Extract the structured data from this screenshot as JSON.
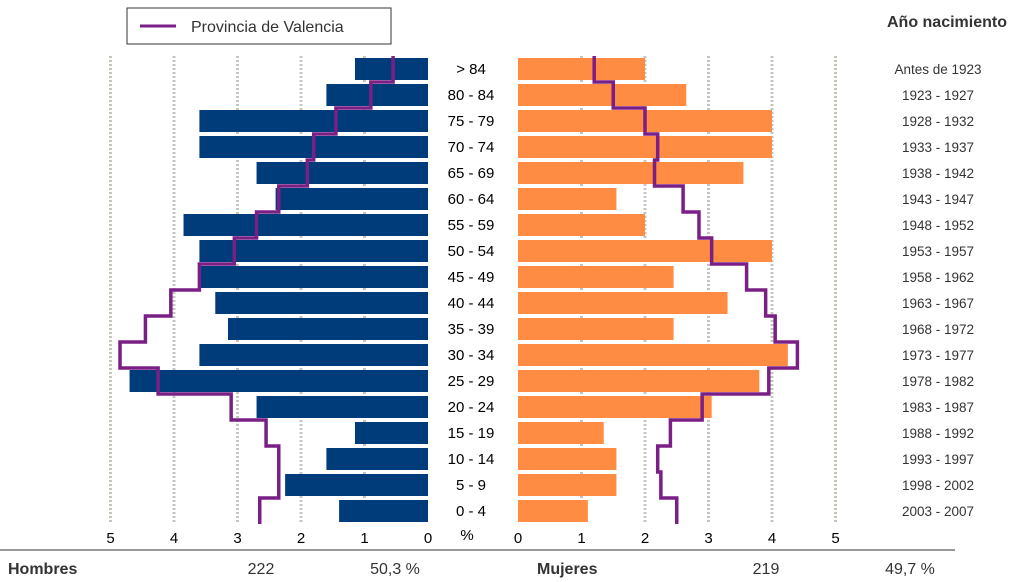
{
  "chart_data": {
    "type": "bar",
    "subtype": "population-pyramid",
    "year_header": "Año nacimiento",
    "legend": {
      "label": "Provincia de Valencia",
      "color": "#7a1f86",
      "placement": "top-left"
    },
    "categories": [
      "> 84",
      "80 - 84",
      "75 - 79",
      "70 - 74",
      "65 - 69",
      "60 - 64",
      "55 - 59",
      "50 - 54",
      "45 - 49",
      "40 - 44",
      "35 - 39",
      "30 - 34",
      "25 - 29",
      "20 - 24",
      "15 - 19",
      "10 - 14",
      "5 - 9",
      "0 - 4"
    ],
    "birth_years": [
      "Antes de 1923",
      "1923 - 1927",
      "1928 - 1932",
      "1933 - 1937",
      "1938 - 1942",
      "1943 - 1947",
      "1948 - 1952",
      "1953 - 1957",
      "1958 - 1962",
      "1963 - 1967",
      "1968 - 1972",
      "1973 - 1977",
      "1978 - 1982",
      "1983 - 1987",
      "1988 - 1992",
      "1993 - 1997",
      "1998 - 2002",
      "2003 - 2007"
    ],
    "series": [
      {
        "name": "Hombres",
        "color": "#003b7a",
        "values": [
          1.15,
          1.6,
          3.6,
          3.6,
          2.7,
          2.4,
          3.85,
          3.6,
          3.6,
          3.35,
          3.15,
          3.6,
          4.7,
          2.7,
          1.15,
          1.6,
          2.25,
          1.4
        ]
      },
      {
        "name": "Mujeres",
        "color": "#ff8c42",
        "values": [
          2.0,
          2.65,
          4.0,
          4.0,
          3.55,
          1.55,
          2.0,
          4.0,
          2.45,
          3.3,
          2.45,
          4.25,
          3.8,
          3.05,
          1.35,
          1.55,
          1.55,
          1.1
        ]
      },
      {
        "name": "Provincia de Valencia - Hombres",
        "color": "#7a1f86",
        "values": [
          0.55,
          0.9,
          1.45,
          1.8,
          1.9,
          2.35,
          2.7,
          3.05,
          3.6,
          4.05,
          4.45,
          4.85,
          4.25,
          3.1,
          2.55,
          2.35,
          2.35,
          2.65
        ]
      },
      {
        "name": "Provincia de Valencia - Mujeres",
        "color": "#7a1f86",
        "values": [
          1.2,
          1.5,
          2.0,
          2.2,
          2.15,
          2.6,
          2.85,
          3.05,
          3.6,
          3.9,
          4.05,
          4.4,
          3.95,
          2.9,
          2.4,
          2.2,
          2.25,
          2.5
        ]
      }
    ],
    "xlim": [
      0,
      5
    ],
    "x_ticks": [
      "5",
      "4",
      "3",
      "2",
      "1",
      "0",
      "%",
      "0",
      "1",
      "2",
      "3",
      "4",
      "5"
    ],
    "grid": "vertical"
  },
  "footer": {
    "hombres_label": "Hombres",
    "hombres_count": "222",
    "hombres_pct": "50,3 %",
    "mujeres_label": "Mujeres",
    "mujeres_count": "219",
    "mujeres_pct": "49,7 %"
  }
}
